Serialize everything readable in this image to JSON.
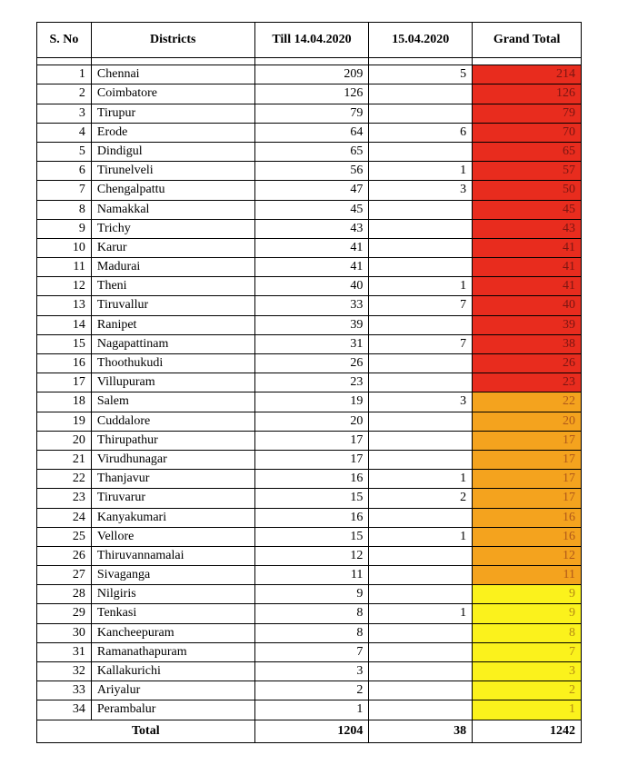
{
  "headers": {
    "sno": "S. No",
    "district": "Districts",
    "till": "Till 14.04.2020",
    "day": "15.04.2020",
    "grand": "Grand Total"
  },
  "total_label": "Total",
  "totals": {
    "till": "1204",
    "day": "38",
    "grand": "1242"
  },
  "style": {
    "colors": {
      "high": {
        "bg": "#e82c1e",
        "fg": "#7a1612"
      },
      "mid": {
        "bg": "#f4a31e",
        "fg": "#b0581a"
      },
      "low": {
        "bg": "#fbf21c",
        "fg": "#b58a15"
      },
      "total": {
        "bg": "#ffffff",
        "fg": "#000000"
      }
    }
  },
  "rows": [
    {
      "sno": "1",
      "district": "Chennai",
      "till": "209",
      "day": "5",
      "grand": "214",
      "tier": "high"
    },
    {
      "sno": "2",
      "district": "Coimbatore",
      "till": "126",
      "day": "",
      "grand": "126",
      "tier": "high"
    },
    {
      "sno": "3",
      "district": "Tirupur",
      "till": "79",
      "day": "",
      "grand": "79",
      "tier": "high"
    },
    {
      "sno": "4",
      "district": "Erode",
      "till": "64",
      "day": "6",
      "grand": "70",
      "tier": "high"
    },
    {
      "sno": "5",
      "district": "Dindigul",
      "till": "65",
      "day": "",
      "grand": "65",
      "tier": "high"
    },
    {
      "sno": "6",
      "district": "Tirunelveli",
      "till": "56",
      "day": "1",
      "grand": "57",
      "tier": "high"
    },
    {
      "sno": "7",
      "district": "Chengalpattu",
      "till": "47",
      "day": "3",
      "grand": "50",
      "tier": "high"
    },
    {
      "sno": "8",
      "district": "Namakkal",
      "till": "45",
      "day": "",
      "grand": "45",
      "tier": "high"
    },
    {
      "sno": "9",
      "district": "Trichy",
      "till": "43",
      "day": "",
      "grand": "43",
      "tier": "high"
    },
    {
      "sno": "10",
      "district": "Karur",
      "till": "41",
      "day": "",
      "grand": "41",
      "tier": "high"
    },
    {
      "sno": "11",
      "district": "Madurai",
      "till": "41",
      "day": "",
      "grand": "41",
      "tier": "high"
    },
    {
      "sno": "12",
      "district": "Theni",
      "till": "40",
      "day": "1",
      "grand": "41",
      "tier": "high"
    },
    {
      "sno": "13",
      "district": "Tiruvallur",
      "till": "33",
      "day": "7",
      "grand": "40",
      "tier": "high"
    },
    {
      "sno": "14",
      "district": "Ranipet",
      "till": "39",
      "day": "",
      "grand": "39",
      "tier": "high"
    },
    {
      "sno": "15",
      "district": "Nagapattinam",
      "till": "31",
      "day": "7",
      "grand": "38",
      "tier": "high"
    },
    {
      "sno": "16",
      "district": "Thoothukudi",
      "till": "26",
      "day": "",
      "grand": "26",
      "tier": "high"
    },
    {
      "sno": "17",
      "district": "Villupuram",
      "till": "23",
      "day": "",
      "grand": "23",
      "tier": "high"
    },
    {
      "sno": "18",
      "district": "Salem",
      "till": "19",
      "day": "3",
      "grand": "22",
      "tier": "mid"
    },
    {
      "sno": "19",
      "district": "Cuddalore",
      "till": "20",
      "day": "",
      "grand": "20",
      "tier": "mid"
    },
    {
      "sno": "20",
      "district": "Thirupathur",
      "till": "17",
      "day": "",
      "grand": "17",
      "tier": "mid"
    },
    {
      "sno": "21",
      "district": "Virudhunagar",
      "till": "17",
      "day": "",
      "grand": "17",
      "tier": "mid"
    },
    {
      "sno": "22",
      "district": "Thanjavur",
      "till": "16",
      "day": "1",
      "grand": "17",
      "tier": "mid"
    },
    {
      "sno": "23",
      "district": "Tiruvarur",
      "till": "15",
      "day": "2",
      "grand": "17",
      "tier": "mid"
    },
    {
      "sno": "24",
      "district": "Kanyakumari",
      "till": "16",
      "day": "",
      "grand": "16",
      "tier": "mid"
    },
    {
      "sno": "25",
      "district": "Vellore",
      "till": "15",
      "day": "1",
      "grand": "16",
      "tier": "mid"
    },
    {
      "sno": "26",
      "district": "Thiruvannamalai",
      "till": "12",
      "day": "",
      "grand": "12",
      "tier": "mid"
    },
    {
      "sno": "27",
      "district": "Sivaganga",
      "till": "11",
      "day": "",
      "grand": "11",
      "tier": "mid"
    },
    {
      "sno": "28",
      "district": "Nilgiris",
      "till": "9",
      "day": "",
      "grand": "9",
      "tier": "low"
    },
    {
      "sno": "29",
      "district": "Tenkasi",
      "till": "8",
      "day": "1",
      "grand": "9",
      "tier": "low"
    },
    {
      "sno": "30",
      "district": "Kancheepuram",
      "till": "8",
      "day": "",
      "grand": "8",
      "tier": "low"
    },
    {
      "sno": "31",
      "district": "Ramanathapuram",
      "till": "7",
      "day": "",
      "grand": "7",
      "tier": "low"
    },
    {
      "sno": "32",
      "district": "Kallakurichi",
      "till": "3",
      "day": "",
      "grand": "3",
      "tier": "low"
    },
    {
      "sno": "33",
      "district": "Ariyalur",
      "till": "2",
      "day": "",
      "grand": "2",
      "tier": "low"
    },
    {
      "sno": "34",
      "district": "Perambalur",
      "till": "1",
      "day": "",
      "grand": "1",
      "tier": "low"
    }
  ]
}
